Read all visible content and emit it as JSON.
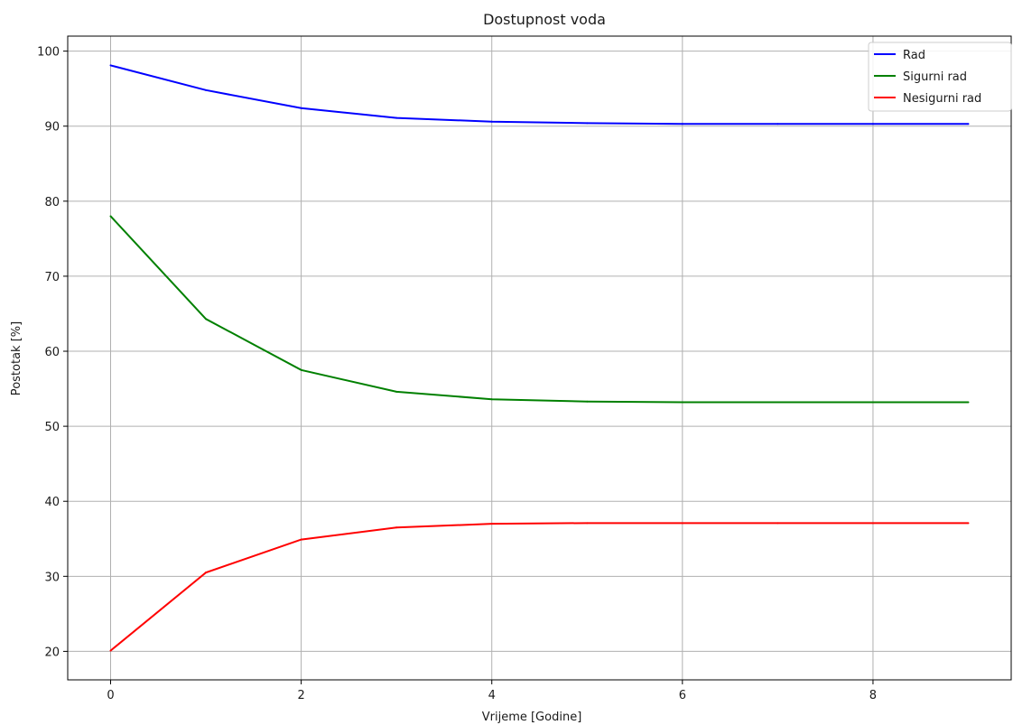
{
  "chart_data": {
    "type": "line",
    "title": "Dostupnost voda",
    "xlabel": "Vrijeme [Godine]",
    "ylabel": "Postotak [%]",
    "xlim": [
      -0.45,
      9.45
    ],
    "ylim": [
      16.2,
      102.0
    ],
    "x_ticks": [
      0,
      2,
      4,
      6,
      8
    ],
    "y_ticks": [
      20,
      30,
      40,
      50,
      60,
      70,
      80,
      90,
      100
    ],
    "grid": true,
    "legend_position": "top-right",
    "x": [
      0,
      1,
      2,
      3,
      4,
      5,
      6,
      7,
      8,
      9
    ],
    "series": [
      {
        "name": "Rad",
        "color": "#0000ff",
        "values": [
          98.1,
          94.8,
          92.4,
          91.1,
          90.6,
          90.4,
          90.3,
          90.3,
          90.3,
          90.3
        ]
      },
      {
        "name": "Sigurni rad",
        "color": "#008000",
        "values": [
          78.0,
          64.3,
          57.5,
          54.6,
          53.6,
          53.3,
          53.2,
          53.2,
          53.2,
          53.2
        ]
      },
      {
        "name": "Nesigurni rad",
        "color": "#ff0000",
        "values": [
          20.1,
          30.5,
          34.9,
          36.5,
          37.0,
          37.1,
          37.1,
          37.1,
          37.1,
          37.1
        ]
      }
    ]
  }
}
